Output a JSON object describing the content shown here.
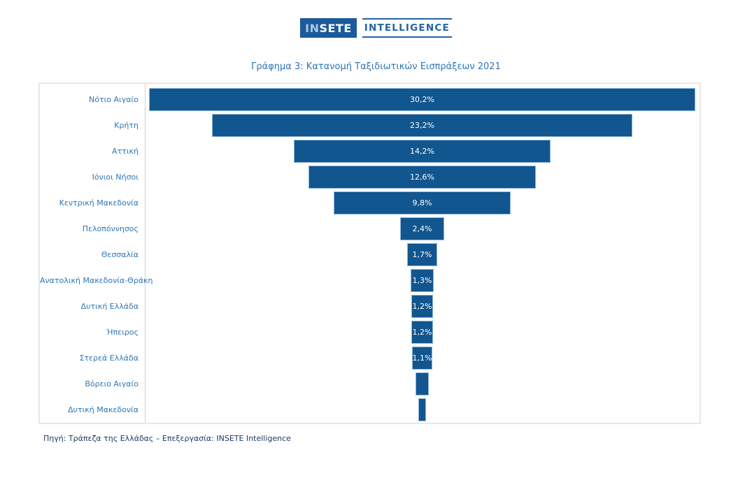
{
  "logo": {
    "primary_light": "IN",
    "primary_bold": "SETE",
    "secondary": "INTELLIGENCE"
  },
  "title": "Γράφημα 3: Κατανομή Ταξιδιωτικών Εισπράξεων 2021",
  "source": "Πηγή: Τράπεζα της Ελλάδας – Επεξεργασία: INSETE Intelligence",
  "colors": {
    "bar_fill": "#11568F",
    "bar_border": "#8FB6DE",
    "bar_value_text": "#FFFFFF",
    "category_label_text": "#2E75B6",
    "title_text": "#2E75B6",
    "logo_box_bg": "#1B5A9B",
    "logo_in_text": "#A9C7E6",
    "logo_secondary_text": "#2264A7",
    "source_text": "#1F3864",
    "chart_box_border": "#E8E8E8"
  },
  "chart_data": {
    "type": "bar",
    "orientation": "horizontal-centered-funnel",
    "title": "Γράφημα 3: Κατανομή Ταξιδιωτικών Εισπράξεων 2021",
    "categories": [
      "Νότιο Αιγαίο",
      "Κρήτη",
      "Αττική",
      "Ιόνιοι Νήσοι",
      "Κεντρική Μακεδονία",
      "Πελοπόννησος",
      "Θεσσαλία",
      "Ανατολική Μακεδονία-Θράκη",
      "Δυτική Ελλάδα",
      "Ήπειρος",
      "Στερεά Ελλάδα",
      "Βόρειο Αιγαίο",
      "Δυτική Μακεδονία"
    ],
    "values": [
      30.2,
      23.2,
      14.2,
      12.6,
      9.8,
      2.4,
      1.7,
      1.3,
      1.2,
      1.2,
      1.1,
      0.7,
      0.4
    ],
    "value_labels": [
      "30,2%",
      "23,2%",
      "14,2%",
      "12,6%",
      "9,8%",
      "2,4%",
      "1,7%",
      "1,3%",
      "1,2%",
      "1,2%",
      "1,1%",
      "",
      ""
    ],
    "unit": "%",
    "xlim": [
      0,
      30.2
    ],
    "grid": false,
    "legend": false
  }
}
